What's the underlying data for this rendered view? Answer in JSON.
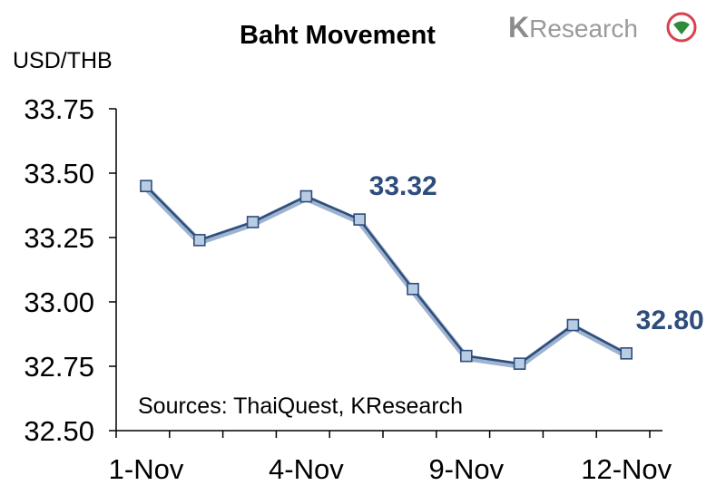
{
  "chart_data": {
    "type": "line",
    "title": "Baht Movement",
    "ylabel": "USD/THB",
    "xlabel": "",
    "ylim": [
      32.5,
      33.75
    ],
    "yticks": [
      "33.75",
      "33.50",
      "33.25",
      "33.00",
      "32.75",
      "32.50"
    ],
    "ytick_values": [
      33.75,
      33.5,
      33.25,
      33.0,
      32.75,
      32.5
    ],
    "x_tick_labels": [
      {
        "index": 0,
        "label": "1-Nov"
      },
      {
        "index": 3,
        "label": "4-Nov"
      },
      {
        "index": 6,
        "label": "9-Nov"
      },
      {
        "index": 9,
        "label": "12-Nov"
      }
    ],
    "series": [
      {
        "values": [
          33.45,
          33.24,
          33.31,
          33.41,
          33.32,
          33.05,
          32.79,
          32.76,
          32.91,
          32.8
        ],
        "color": "#2e4d7b",
        "marker_fill": "#b8cce4"
      }
    ],
    "annotations": [
      {
        "index": 4,
        "text": "33.32"
      },
      {
        "index": 9,
        "text": "32.80"
      }
    ],
    "source": "Sources: ThaiQuest, KResearch",
    "grid": false
  },
  "logo": {
    "k": "K",
    "rest": "Research",
    "color": "#8c8c8c",
    "accent": "#2e8b3a",
    "ring": "#d9414b"
  }
}
